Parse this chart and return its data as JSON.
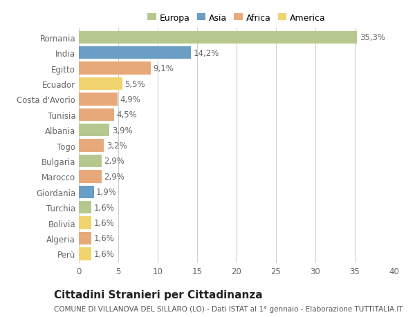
{
  "countries": [
    "Romania",
    "India",
    "Egitto",
    "Ecuador",
    "Costa d'Avorio",
    "Tunisia",
    "Albania",
    "Togo",
    "Bulgaria",
    "Marocco",
    "Giordania",
    "Turchia",
    "Bolivia",
    "Algeria",
    "Perù"
  ],
  "values": [
    35.3,
    14.2,
    9.1,
    5.5,
    4.9,
    4.5,
    3.9,
    3.2,
    2.9,
    2.9,
    1.9,
    1.6,
    1.6,
    1.6,
    1.6
  ],
  "labels": [
    "35,3%",
    "14,2%",
    "9,1%",
    "5,5%",
    "4,9%",
    "4,5%",
    "3,9%",
    "3,2%",
    "2,9%",
    "2,9%",
    "1,9%",
    "1,6%",
    "1,6%",
    "1,6%",
    "1,6%"
  ],
  "continents": [
    "Europa",
    "Asia",
    "Africa",
    "America",
    "Africa",
    "Africa",
    "Europa",
    "Africa",
    "Europa",
    "Africa",
    "Asia",
    "Europa",
    "America",
    "Africa",
    "America"
  ],
  "continent_colors": {
    "Europa": "#b5c98e",
    "Asia": "#6b9ec4",
    "Africa": "#e8a97a",
    "America": "#f0d470"
  },
  "legend_order": [
    "Europa",
    "Asia",
    "Africa",
    "America"
  ],
  "background_color": "#ffffff",
  "grid_color": "#d0d0d0",
  "xlim": [
    0,
    40
  ],
  "xticks": [
    0,
    5,
    10,
    15,
    20,
    25,
    30,
    35,
    40
  ],
  "title": "Cittadini Stranieri per Cittadinanza",
  "subtitle": "COMUNE DI VILLANOVA DEL SILLARO (LO) - Dati ISTAT al 1° gennaio - Elaborazione TUTTITALIA.IT",
  "bar_height": 0.82,
  "label_fontsize": 8.5,
  "tick_fontsize": 8.5,
  "title_fontsize": 11,
  "subtitle_fontsize": 7.5
}
